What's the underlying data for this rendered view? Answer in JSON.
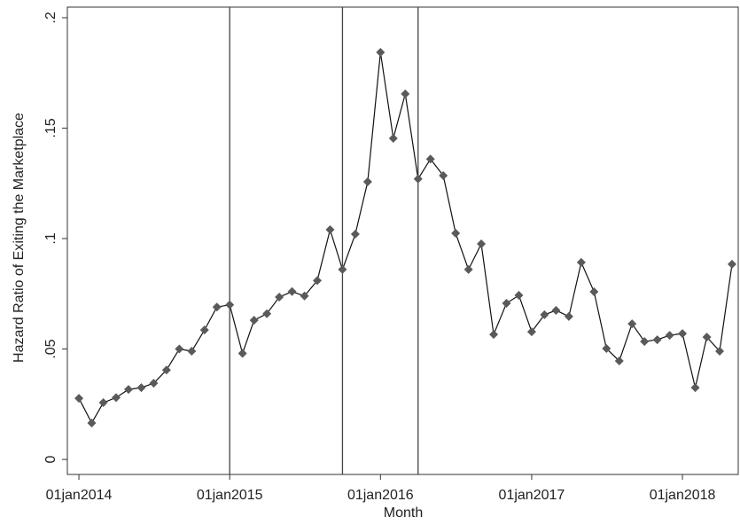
{
  "chart_data": {
    "type": "line",
    "x_label": "Month",
    "y_label": "Hazard Ratio of Exiting the Marketplace",
    "x": [
      "2014-01-01",
      "2014-02-01",
      "2014-03-01",
      "2014-04-01",
      "2014-05-01",
      "2014-06-01",
      "2014-07-01",
      "2014-08-01",
      "2014-09-01",
      "2014-10-01",
      "2014-11-01",
      "2014-12-01",
      "2015-01-01",
      "2015-02-01",
      "2015-03-01",
      "2015-04-01",
      "2015-05-01",
      "2015-06-01",
      "2015-07-01",
      "2015-08-01",
      "2015-09-01",
      "2015-10-01",
      "2015-11-01",
      "2015-12-01",
      "2016-01-01",
      "2016-02-01",
      "2016-03-01",
      "2016-04-01",
      "2016-05-01",
      "2016-06-01",
      "2016-07-01",
      "2016-08-01",
      "2016-09-01",
      "2016-10-01",
      "2016-11-01",
      "2016-12-01",
      "2017-01-01",
      "2017-02-01",
      "2017-03-01",
      "2017-04-01",
      "2017-05-01",
      "2017-06-01",
      "2017-07-01",
      "2017-08-01",
      "2017-09-01",
      "2017-10-01",
      "2017-11-01",
      "2017-12-01",
      "2018-01-01",
      "2018-02-01",
      "2018-03-01",
      "2018-04-01",
      "2018-05-01"
    ],
    "series": [
      {
        "name": "Hazard Ratio",
        "color": "#5a5a5a",
        "line_color": "#111111",
        "values": [
          0.0277,
          0.0165,
          0.0257,
          0.028,
          0.0317,
          0.0325,
          0.0345,
          0.0405,
          0.05,
          0.049,
          0.0586,
          0.069,
          0.07,
          0.048,
          0.063,
          0.066,
          0.0735,
          0.076,
          0.074,
          0.081,
          0.104,
          0.086,
          0.102,
          0.1257,
          0.1843,
          0.1454,
          0.1655,
          0.127,
          0.136,
          0.1285,
          0.1024,
          0.086,
          0.0976,
          0.0566,
          0.0707,
          0.0743,
          0.0578,
          0.0655,
          0.0675,
          0.0647,
          0.0892,
          0.0759,
          0.0502,
          0.0446,
          0.0614,
          0.0534,
          0.0542,
          0.0562,
          0.057,
          0.0325,
          0.0554,
          0.049,
          0.0884
        ]
      }
    ],
    "xlim": [
      "2013-12-04",
      "2018-05-16"
    ],
    "xticks": [
      {
        "value": "2014-01-01",
        "label": "01jan2014"
      },
      {
        "value": "2015-01-01",
        "label": "01jan2015"
      },
      {
        "value": "2016-01-01",
        "label": "01jan2016"
      },
      {
        "value": "2017-01-01",
        "label": "01jan2017"
      },
      {
        "value": "2018-01-01",
        "label": "01jan2018"
      }
    ],
    "ylim": [
      -0.0068,
      0.2048
    ],
    "yticks": [
      0,
      {
        "value": 0.05,
        "label": ".05"
      },
      {
        "value": 0.1,
        "label": ".1"
      },
      {
        "value": 0.15,
        "label": ".15"
      },
      {
        "value": 0.2,
        "label": ".2"
      }
    ],
    "vlines": [
      "2015-01-01",
      "2015-10-01",
      "2016-04-01"
    ],
    "grid": false
  }
}
